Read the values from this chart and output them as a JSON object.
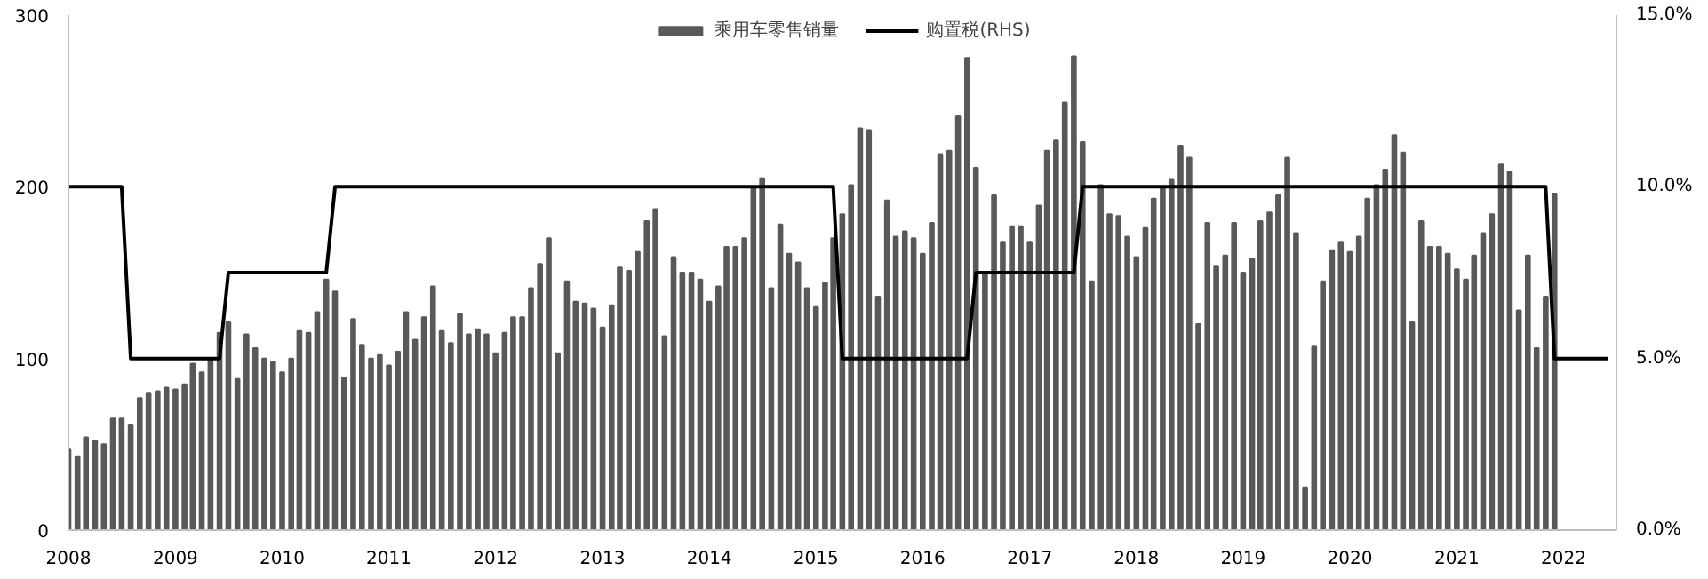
{
  "chart_data": {
    "type": "bar",
    "x": [
      "2008-01",
      "2008-02",
      "2008-03",
      "2008-04",
      "2008-05",
      "2008-06",
      "2008-07",
      "2008-08",
      "2008-09",
      "2008-10",
      "2008-11",
      "2008-12",
      "2009-01",
      "2009-02",
      "2009-03",
      "2009-04",
      "2009-05",
      "2009-06",
      "2009-07",
      "2009-08",
      "2009-09",
      "2009-10",
      "2009-11",
      "2009-12",
      "2010-01",
      "2010-02",
      "2010-03",
      "2010-04",
      "2010-05",
      "2010-06",
      "2010-07",
      "2010-08",
      "2010-09",
      "2010-10",
      "2010-11",
      "2010-12",
      "2011-01",
      "2011-02",
      "2011-03",
      "2011-04",
      "2011-05",
      "2011-06",
      "2011-07",
      "2011-08",
      "2011-09",
      "2011-10",
      "2011-11",
      "2011-12",
      "2012-01",
      "2012-02",
      "2012-03",
      "2012-04",
      "2012-05",
      "2012-06",
      "2012-07",
      "2012-08",
      "2012-09",
      "2012-10",
      "2012-11",
      "2012-12",
      "2013-01",
      "2013-02",
      "2013-03",
      "2013-04",
      "2013-05",
      "2013-06",
      "2013-07",
      "2013-08",
      "2013-09",
      "2013-10",
      "2013-11",
      "2013-12",
      "2014-01",
      "2014-02",
      "2014-03",
      "2014-04",
      "2014-05",
      "2014-06",
      "2014-07",
      "2014-08",
      "2014-09",
      "2014-10",
      "2014-11",
      "2014-12",
      "2015-01",
      "2015-02",
      "2015-03",
      "2015-04",
      "2015-05",
      "2015-06",
      "2015-07",
      "2015-08",
      "2015-09",
      "2015-10",
      "2015-11",
      "2015-12",
      "2016-01",
      "2016-02",
      "2016-03",
      "2016-04",
      "2016-05",
      "2016-06",
      "2016-07",
      "2016-08",
      "2016-09",
      "2016-10",
      "2016-11",
      "2016-12",
      "2017-01",
      "2017-02",
      "2017-03",
      "2017-04",
      "2017-05",
      "2017-06",
      "2017-07",
      "2017-08",
      "2017-09",
      "2017-10",
      "2017-11",
      "2017-12",
      "2018-01",
      "2018-02",
      "2018-03",
      "2018-04",
      "2018-05",
      "2018-06",
      "2018-07",
      "2018-08",
      "2018-09",
      "2018-10",
      "2018-11",
      "2018-12",
      "2019-01",
      "2019-02",
      "2019-03",
      "2019-04",
      "2019-05",
      "2019-06",
      "2019-07",
      "2019-08",
      "2019-09",
      "2019-10",
      "2019-11",
      "2019-12",
      "2020-01",
      "2020-02",
      "2020-03",
      "2020-04",
      "2020-05",
      "2020-06",
      "2020-07",
      "2020-08",
      "2020-09",
      "2020-10",
      "2020-11",
      "2020-12",
      "2021-01",
      "2021-02",
      "2021-03",
      "2021-04",
      "2021-05",
      "2021-06",
      "2021-07",
      "2021-08",
      "2021-09",
      "2021-10",
      "2021-11",
      "2021-12"
    ],
    "xlim": [
      "2008-01",
      "2022-07"
    ],
    "xticks": [
      "2008",
      "2009",
      "2010",
      "2011",
      "2012",
      "2013",
      "2014",
      "2015",
      "2016",
      "2017",
      "2018",
      "2019",
      "2020",
      "2021",
      "2022"
    ],
    "ylim": [
      0,
      300
    ],
    "yticks": [
      0,
      100,
      200,
      300
    ],
    "y2lim": [
      0,
      15
    ],
    "y2ticks": [
      {
        "value": 0,
        "label": "0.0%"
      },
      {
        "value": 5,
        "label": "5.0%"
      },
      {
        "value": 10,
        "label": "10.0%"
      },
      {
        "value": 15,
        "label": "15.0%"
      }
    ],
    "legend": "top",
    "grid": false,
    "series": [
      {
        "name": "乘用车零售销量",
        "color": "#595959",
        "values": [
          47,
          43,
          54,
          52,
          50,
          65,
          65,
          61,
          77,
          80,
          81,
          83,
          82,
          85,
          97,
          92,
          99,
          115,
          121,
          88,
          114,
          106,
          100,
          98,
          92,
          100,
          116,
          115,
          127,
          146,
          139,
          89,
          123,
          108,
          100,
          102,
          96,
          104,
          127,
          111,
          124,
          142,
          116,
          109,
          126,
          114,
          117,
          114,
          103,
          115,
          124,
          124,
          141,
          155,
          170,
          103,
          145,
          133,
          132,
          129,
          118,
          131,
          153,
          151,
          162,
          180,
          187,
          113,
          159,
          150,
          150,
          146,
          133,
          142,
          165,
          165,
          170,
          199,
          205,
          141,
          178,
          161,
          156,
          141,
          130,
          144,
          170,
          184,
          201,
          234,
          233,
          136,
          192,
          171,
          174,
          170,
          161,
          179,
          219,
          221,
          241,
          275,
          211,
          150,
          195,
          168,
          177,
          177,
          168,
          189,
          221,
          227,
          249,
          276,
          226,
          145,
          201,
          184,
          183,
          171,
          159,
          176,
          193,
          199,
          204,
          224,
          217,
          120,
          179,
          154,
          160,
          179,
          150,
          158,
          180,
          185,
          195,
          217,
          173,
          25,
          107,
          145,
          163,
          168,
          162,
          171,
          193,
          201,
          210,
          230,
          220,
          121,
          180,
          165,
          165,
          161,
          152,
          146,
          160,
          173,
          184,
          213,
          209,
          128,
          160,
          106,
          136,
          196
        ]
      },
      {
        "name": "购置税(RHS)",
        "type": "line",
        "axis": "y2",
        "color": "#000000",
        "x": [
          "2008-01",
          "2008-07",
          "2008-08",
          "2009-06",
          "2009-07",
          "2010-06",
          "2010-07",
          "2015-03",
          "2015-04",
          "2016-06",
          "2016-07",
          "2017-06",
          "2017-07",
          "2021-11",
          "2021-12",
          "2022-06"
        ],
        "values": [
          10,
          10,
          5,
          5,
          7.5,
          7.5,
          10,
          10,
          5,
          5,
          7.5,
          7.5,
          10,
          10,
          5,
          5
        ]
      }
    ]
  }
}
